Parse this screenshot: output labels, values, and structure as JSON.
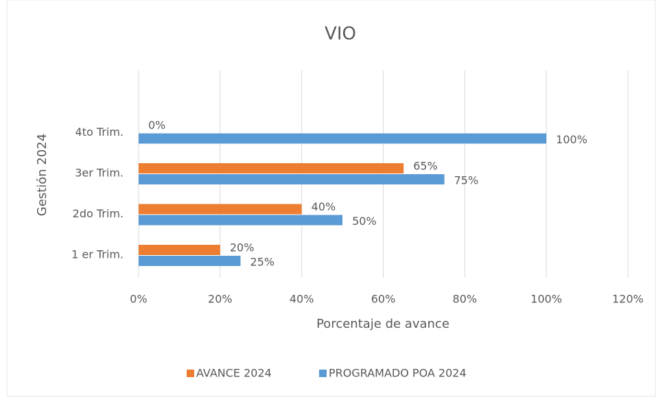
{
  "chart_data": {
    "type": "barh",
    "title": "VIO",
    "xlabel": "Porcentaje de avance",
    "ylabel": "Gestión 2024",
    "categories": [
      "1 er Trim.",
      "2do Trim.",
      "3er Trim.",
      "4to Trim."
    ],
    "series": [
      {
        "name": "AVANCE 2024",
        "color": "#ed7d31",
        "values": [
          20,
          40,
          65,
          0
        ],
        "value_labels": [
          "20%",
          "40%",
          "65%",
          "0%"
        ]
      },
      {
        "name": "PROGRAMADO POA 2024",
        "color": "#5b9bd5",
        "values": [
          25,
          50,
          75,
          100
        ],
        "value_labels": [
          "25%",
          "50%",
          "75%",
          "100%"
        ]
      }
    ],
    "xlim": [
      0,
      120
    ],
    "xticks": [
      {
        "value": 0,
        "label": "0%"
      },
      {
        "value": 20,
        "label": "20%"
      },
      {
        "value": 40,
        "label": "40%"
      },
      {
        "value": 60,
        "label": "60%"
      },
      {
        "value": 80,
        "label": "80%"
      },
      {
        "value": 100,
        "label": "100%"
      },
      {
        "value": 120,
        "label": "120%"
      }
    ],
    "grid": true,
    "legend": "bottom"
  }
}
